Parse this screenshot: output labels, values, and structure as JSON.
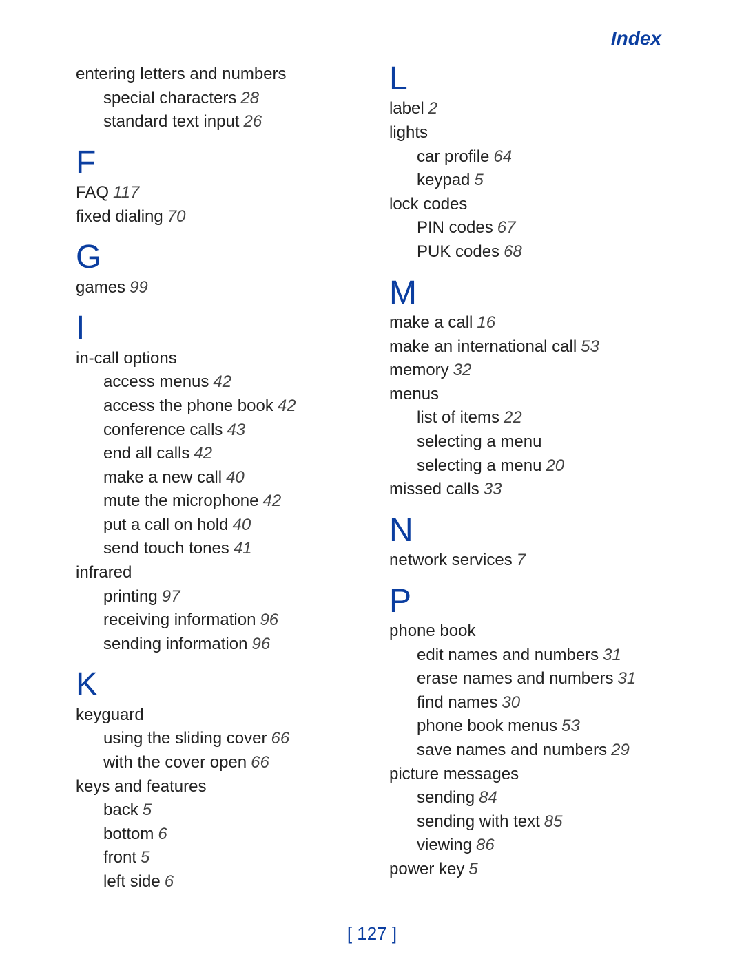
{
  "header": {
    "title": "Index"
  },
  "footer": {
    "page": "[ 127 ]"
  },
  "left": {
    "top_entry": {
      "text": "entering letters and numbers"
    },
    "top_subs": [
      {
        "text": "special characters",
        "page": "28"
      },
      {
        "text": "standard text input",
        "page": "26"
      }
    ],
    "F": {
      "letter": "F",
      "items": [
        {
          "text": "FAQ",
          "page": "117"
        },
        {
          "text": "fixed dialing",
          "page": "70"
        }
      ]
    },
    "G": {
      "letter": "G",
      "items": [
        {
          "text": "games",
          "page": "99"
        }
      ]
    },
    "I": {
      "letter": "I",
      "groups": [
        {
          "head": "in-call options",
          "subs": [
            {
              "text": "access menus",
              "page": "42"
            },
            {
              "text": "access the phone book",
              "page": "42"
            },
            {
              "text": "conference calls",
              "page": "43"
            },
            {
              "text": "end all calls",
              "page": "42"
            },
            {
              "text": "make a new call",
              "page": "40"
            },
            {
              "text": "mute the microphone",
              "page": "42"
            },
            {
              "text": "put a call on hold",
              "page": "40"
            },
            {
              "text": "send touch tones",
              "page": "41"
            }
          ]
        },
        {
          "head": "infrared",
          "subs": [
            {
              "text": "printing",
              "page": "97"
            },
            {
              "text": "receiving information",
              "page": "96"
            },
            {
              "text": "sending information",
              "page": "96"
            }
          ]
        }
      ]
    },
    "K": {
      "letter": "K",
      "groups": [
        {
          "head": "keyguard",
          "subs": [
            {
              "text": "using the sliding cover",
              "page": "66"
            },
            {
              "text": "with the cover open",
              "page": "66"
            }
          ]
        },
        {
          "head": "keys and features",
          "subs": [
            {
              "text": "back",
              "page": "5"
            },
            {
              "text": "bottom",
              "page": "6"
            },
            {
              "text": "front",
              "page": "5"
            },
            {
              "text": "left side",
              "page": "6"
            }
          ]
        }
      ]
    }
  },
  "right": {
    "L": {
      "letter": "L",
      "items": [
        {
          "text": "label",
          "page": "2"
        }
      ],
      "groups": [
        {
          "head": "lights",
          "subs": [
            {
              "text": "car profile",
              "page": "64"
            },
            {
              "text": "keypad",
              "page": "5"
            }
          ]
        },
        {
          "head": "lock codes",
          "subs": [
            {
              "text": "PIN codes",
              "page": "67"
            },
            {
              "text": "PUK codes",
              "page": "68"
            }
          ]
        }
      ]
    },
    "M": {
      "letter": "M",
      "items": [
        {
          "text": "make a call",
          "page": "16"
        },
        {
          "text": "make an international call",
          "page": "53"
        },
        {
          "text": "memory",
          "page": "32"
        }
      ],
      "groups": [
        {
          "head": "menus",
          "subs": [
            {
              "text": "list of items",
              "page": "22"
            },
            {
              "text": "selecting a menu",
              "page": "20"
            }
          ]
        }
      ],
      "trailing": [
        {
          "text": "missed calls",
          "page": "33"
        }
      ]
    },
    "N": {
      "letter": "N",
      "items": [
        {
          "text": "network services",
          "page": "7"
        }
      ]
    },
    "P": {
      "letter": "P",
      "groups": [
        {
          "head": "phone book",
          "subs": [
            {
              "text": "edit names and numbers",
              "page": "31"
            },
            {
              "text": "erase names and numbers",
              "page": "31"
            },
            {
              "text": "find names",
              "page": "30"
            },
            {
              "text": "phone book menus",
              "page": "53"
            },
            {
              "text": "save names and numbers",
              "page": "29"
            }
          ]
        },
        {
          "head": "picture messages",
          "subs": [
            {
              "text": "sending",
              "page": "84"
            },
            {
              "text": "sending with text",
              "page": "85"
            },
            {
              "text": "viewing",
              "page": "86"
            }
          ]
        }
      ],
      "trailing": [
        {
          "text": "power key",
          "page": "5"
        }
      ]
    }
  }
}
